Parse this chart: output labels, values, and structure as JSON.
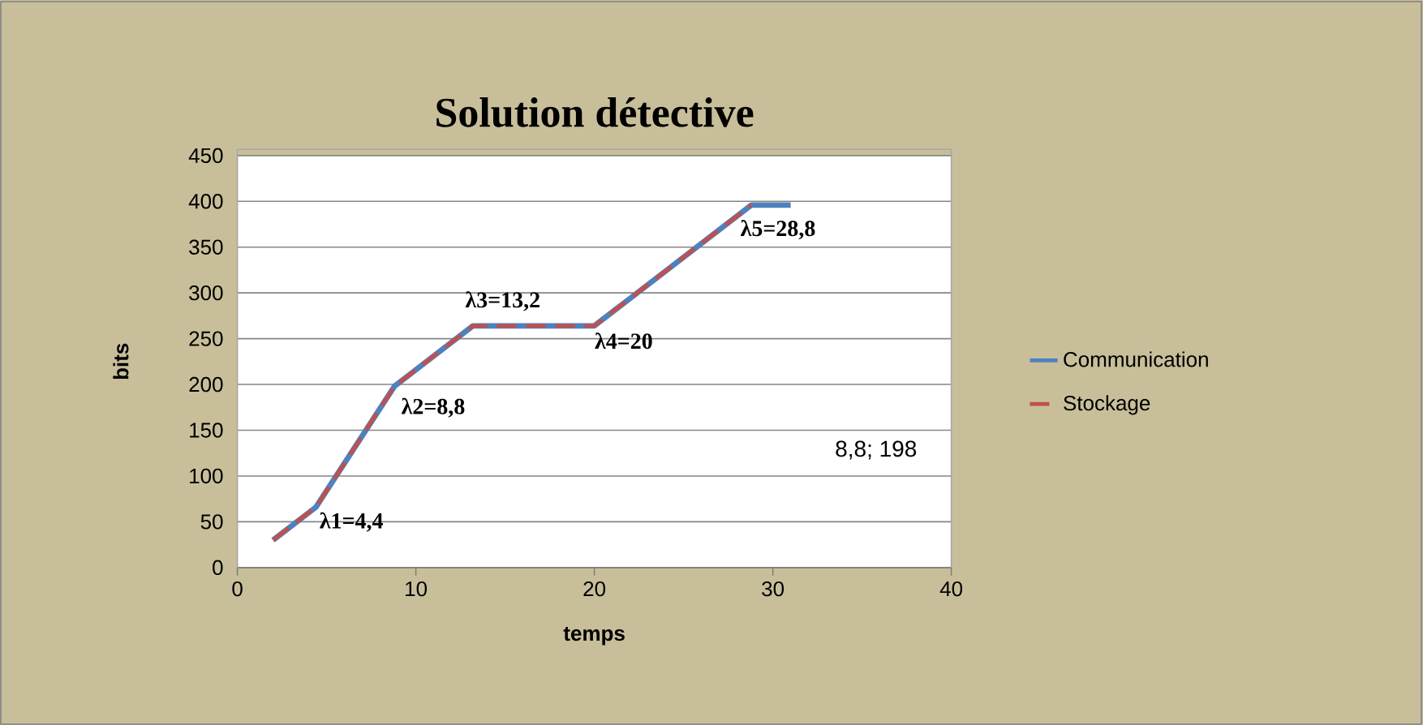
{
  "chart_data": {
    "type": "line",
    "title": "Solution détective",
    "xlabel": "temps",
    "ylabel": "bits",
    "xlim": [
      0,
      40
    ],
    "xticks": [
      0,
      10,
      20,
      30,
      40
    ],
    "ylim": [
      0,
      450
    ],
    "yticks": [
      0,
      50,
      100,
      150,
      200,
      250,
      300,
      350,
      400,
      450
    ],
    "grid": "y",
    "legend": "right",
    "line_style": "solid",
    "marker": "none",
    "series": [
      {
        "name": "Communication",
        "color": "#4f81bd",
        "x": [
          2,
          4.4,
          8.8,
          13.2,
          20,
          28.8,
          31
        ],
        "values": [
          30,
          66,
          198,
          264,
          264,
          396,
          396
        ]
      },
      {
        "name": "Stockage",
        "color": "#c0504d",
        "line_style": "dashed",
        "x": [
          2,
          4.4,
          8.8,
          13.2,
          20,
          28.8
        ],
        "values": [
          30,
          66,
          198,
          264,
          264,
          396
        ]
      }
    ],
    "annotations": [
      {
        "text": "λ1=4,4",
        "x": 4.4,
        "y": 66
      },
      {
        "text": "λ2=8,8",
        "x": 8.8,
        "y": 198
      },
      {
        "text": "λ3=13,2",
        "x": 13.2,
        "y": 264
      },
      {
        "text": "λ4=20",
        "x": 20,
        "y": 264
      },
      {
        "text": "λ5=28,8",
        "x": 28.8,
        "y": 396
      },
      "8,8; 198"
    ]
  }
}
